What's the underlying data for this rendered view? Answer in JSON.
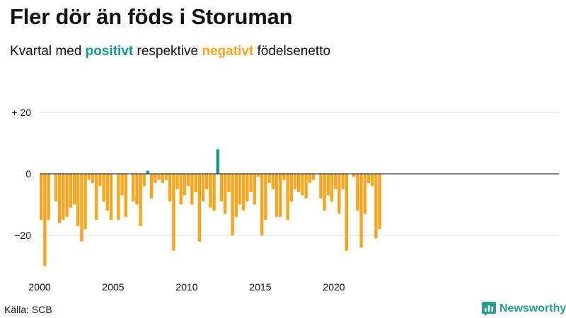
{
  "title": "Fler dör än föds i Storuman",
  "subtitle": {
    "prefix": "Kvartal med ",
    "positive": "positivt",
    "middle": " respektive ",
    "negative": "negativt",
    "suffix": " födelsenetto"
  },
  "source": "Källa: SCB",
  "brand": {
    "name": "Newsworthy",
    "icon": "newsworthy-chart-icon"
  },
  "colors": {
    "positive": "#17998a",
    "negative": "#f5a623",
    "zero_line": "#111111",
    "grid": "#dddddd"
  },
  "chart_data": {
    "type": "bar",
    "x_start": "2000-Q1",
    "xticks": [
      "2000",
      "2005",
      "2010",
      "2015",
      "2020"
    ],
    "y_ticks": [
      {
        "value": 20,
        "label": "+ 20"
      },
      {
        "value": 0,
        "label": "0"
      },
      {
        "value": -20,
        "label": "−20"
      }
    ],
    "ylim": [
      -31,
      25
    ],
    "grid": true,
    "values": [
      -15,
      -30,
      -15,
      0,
      -9,
      -16,
      -15,
      -14,
      -11,
      -10,
      -17,
      -22,
      -18,
      -2,
      -3,
      -15,
      -4,
      -9,
      -12,
      -15,
      0,
      -15,
      -7,
      -14,
      0,
      -9,
      -10,
      -17,
      -4,
      1,
      -8,
      -3,
      -2,
      -3,
      -2,
      -9,
      -25,
      -5,
      -10,
      -7,
      -4,
      -10,
      -6,
      -22,
      -9,
      -5,
      -11,
      -12,
      8,
      -9,
      -13,
      -6,
      -20,
      -14,
      -10,
      -12,
      -9,
      -6,
      -10,
      -1,
      -20,
      -15,
      -3,
      -5,
      -14,
      -14,
      -2,
      -15,
      -9,
      -5,
      -6,
      -7,
      -8,
      -3,
      -2,
      0,
      -8,
      -12,
      -7,
      -9,
      -5,
      -13,
      -5,
      -25,
      0,
      -1,
      -12,
      -24,
      -13,
      -3,
      -4,
      -21,
      -18
    ]
  }
}
